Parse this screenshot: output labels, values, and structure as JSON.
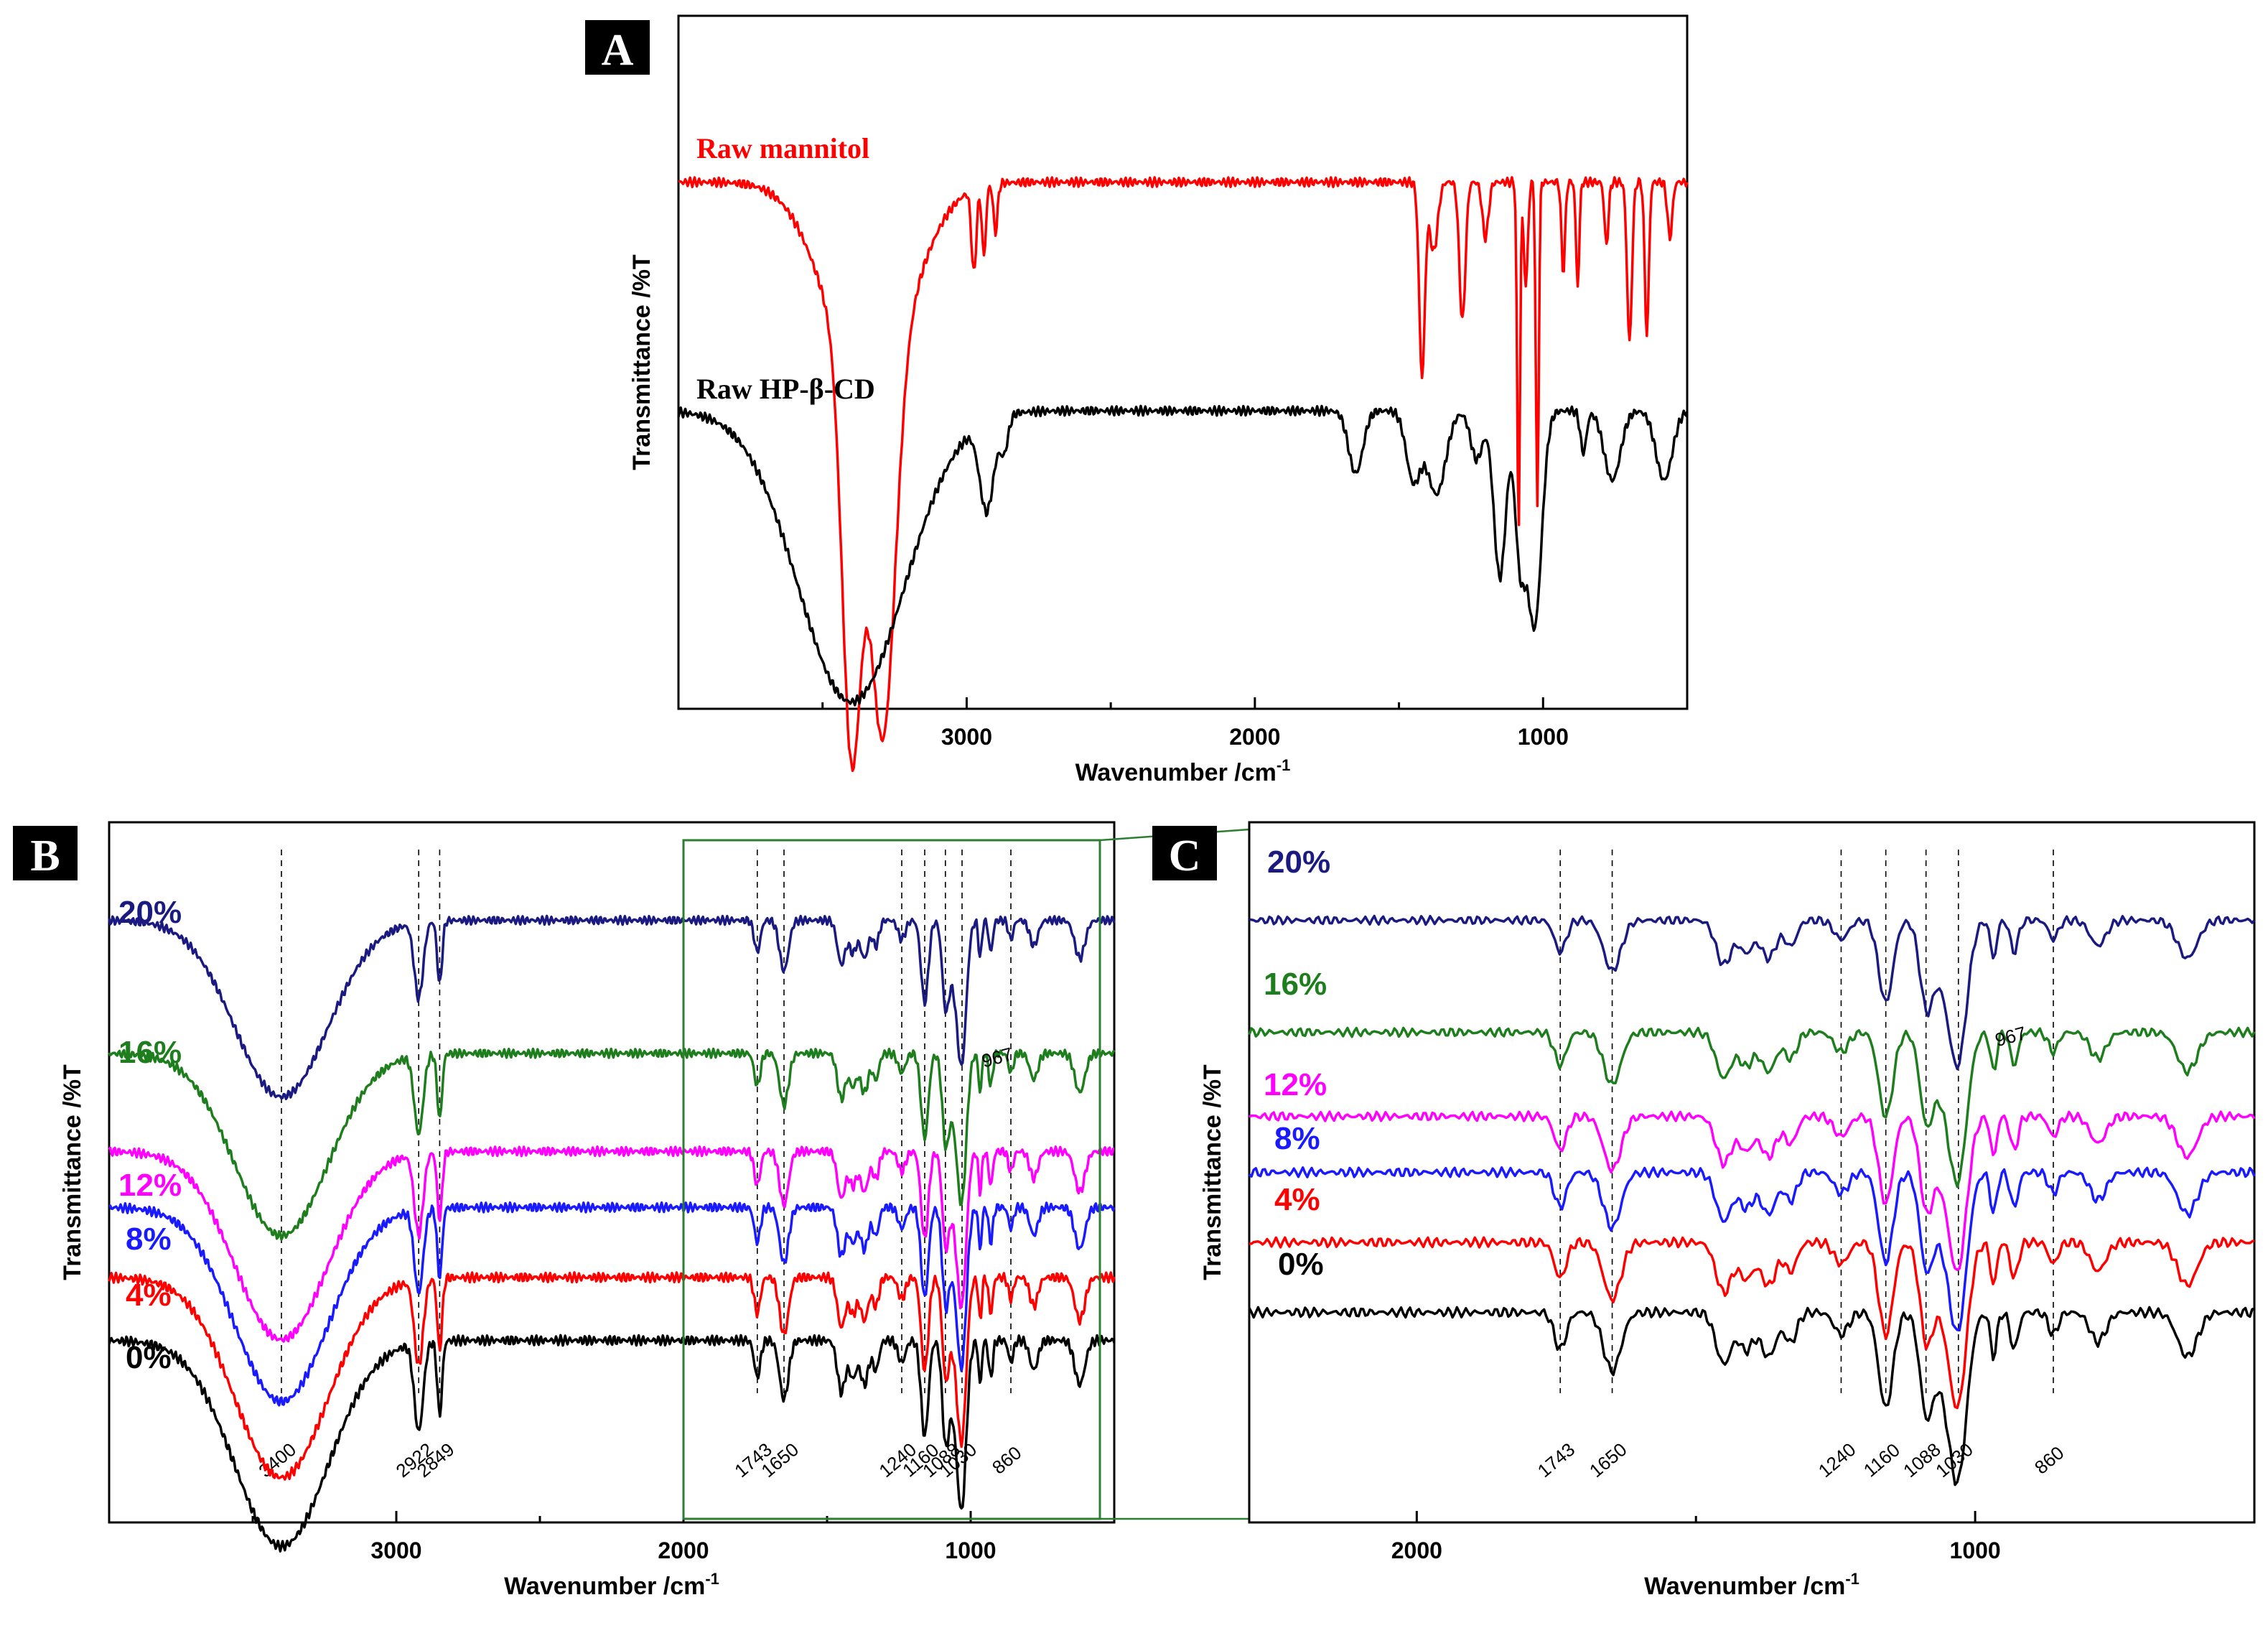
{
  "chart_data": [
    {
      "panel": "A",
      "type": "line",
      "xlabel": "Wavenumber /cm",
      "xlabel_sup": "-1",
      "ylabel": "Transmittance /%T",
      "xlim": [
        4000,
        500
      ],
      "x_ticks": [
        3000,
        2000,
        1000
      ],
      "series": [
        {
          "name": "Raw mannitol",
          "color": "#ff0000",
          "offset": 0.76,
          "bands": [
            [
              3400,
              0.55,
              45
            ],
            [
              3290,
              0.52,
              60
            ],
            [
              3340,
              0.3,
              200
            ],
            [
              2975,
              0.12,
              12
            ],
            [
              2940,
              0.1,
              10
            ],
            [
              2900,
              0.07,
              10
            ],
            [
              1420,
              0.28,
              14
            ],
            [
              1380,
              0.1,
              20
            ],
            [
              1280,
              0.2,
              15
            ],
            [
              1200,
              0.08,
              15
            ],
            [
              1085,
              0.5,
              7
            ],
            [
              1020,
              0.47,
              7
            ],
            [
              1060,
              0.15,
              10
            ],
            [
              930,
              0.13,
              9
            ],
            [
              880,
              0.15,
              8
            ],
            [
              780,
              0.09,
              10
            ],
            [
              700,
              0.23,
              12
            ],
            [
              640,
              0.22,
              10
            ],
            [
              560,
              0.08,
              12
            ]
          ]
        },
        {
          "name": "Raw HP-β-CD",
          "color": "#000000",
          "offset": 0.43,
          "bands": [
            [
              3400,
              0.42,
              260
            ],
            [
              2930,
              0.13,
              35
            ],
            [
              2870,
              0.05,
              20
            ],
            [
              1650,
              0.09,
              35
            ],
            [
              1450,
              0.1,
              35
            ],
            [
              1370,
              0.12,
              45
            ],
            [
              1230,
              0.07,
              30
            ],
            [
              1150,
              0.24,
              30
            ],
            [
              1080,
              0.2,
              25
            ],
            [
              1030,
              0.31,
              35
            ],
            [
              860,
              0.06,
              15
            ],
            [
              760,
              0.1,
              40
            ],
            [
              580,
              0.1,
              40
            ]
          ]
        }
      ]
    },
    {
      "panel": "B",
      "type": "line",
      "xlabel": "Wavenumber /cm",
      "xlabel_sup": "-1",
      "ylabel": "Transmittance /%T",
      "xlim": [
        4000,
        500
      ],
      "x_ticks": [
        3000,
        2000,
        1000
      ],
      "marker_lines": [
        3400,
        2922,
        2849,
        1743,
        1650,
        1240,
        1160,
        1088,
        1030,
        860
      ],
      "marker_labels": [
        "3400",
        "2922",
        "2849",
        "1743",
        "1650",
        "1240",
        "1160",
        "1088",
        "1030",
        "860"
      ],
      "annotation": "967",
      "zoom_box": [
        2000,
        550
      ],
      "series": [
        {
          "name": "20%",
          "color": "#1a1a80",
          "offset": 0.86
        },
        {
          "name": "16%",
          "color": "#1e7e1e",
          "offset": 0.67
        },
        {
          "name": "12%",
          "color": "#ff00ff",
          "offset": 0.53
        },
        {
          "name": "8%",
          "color": "#1a1aff",
          "offset": 0.45
        },
        {
          "name": "4%",
          "color": "#ff0000",
          "offset": 0.35
        },
        {
          "name": "0%",
          "color": "#000000",
          "offset": 0.26
        }
      ]
    },
    {
      "panel": "C",
      "type": "line",
      "xlabel": "Wavenumber /cm",
      "xlabel_sup": "-1",
      "ylabel": "Transmittance /%T",
      "xlim": [
        2300,
        500
      ],
      "x_ticks": [
        2000,
        1000
      ],
      "marker_lines": [
        1743,
        1650,
        1240,
        1160,
        1088,
        1030,
        860
      ],
      "marker_labels": [
        "1743",
        "1650",
        "1240",
        "1160",
        "1088",
        "1030",
        "860"
      ],
      "annotation": "967",
      "series": [
        {
          "name": "20%",
          "color": "#1a1a80",
          "offset": 0.86
        },
        {
          "name": "16%",
          "color": "#1e7e1e",
          "offset": 0.7
        },
        {
          "name": "12%",
          "color": "#ff00ff",
          "offset": 0.58
        },
        {
          "name": "8%",
          "color": "#1a1aff",
          "offset": 0.5
        },
        {
          "name": "4%",
          "color": "#ff0000",
          "offset": 0.4
        },
        {
          "name": "0%",
          "color": "#000000",
          "offset": 0.3
        }
      ]
    }
  ],
  "composite_bands": [
    [
      3400,
      0.28,
      230
    ],
    [
      2922,
      0.12,
      22
    ],
    [
      2849,
      0.1,
      12
    ],
    [
      1743,
      0.05,
      15
    ],
    [
      1650,
      0.08,
      22
    ],
    [
      1450,
      0.07,
      20
    ],
    [
      1410,
      0.05,
      18
    ],
    [
      1370,
      0.06,
      20
    ],
    [
      1330,
      0.04,
      15
    ],
    [
      1240,
      0.03,
      18
    ],
    [
      1160,
      0.13,
      18
    ],
    [
      1088,
      0.11,
      16
    ],
    [
      1030,
      0.2,
      22
    ],
    [
      1060,
      0.08,
      30
    ],
    [
      967,
      0.06,
      8
    ],
    [
      930,
      0.05,
      10
    ],
    [
      860,
      0.03,
      12
    ],
    [
      780,
      0.04,
      20
    ],
    [
      620,
      0.06,
      25
    ]
  ]
}
